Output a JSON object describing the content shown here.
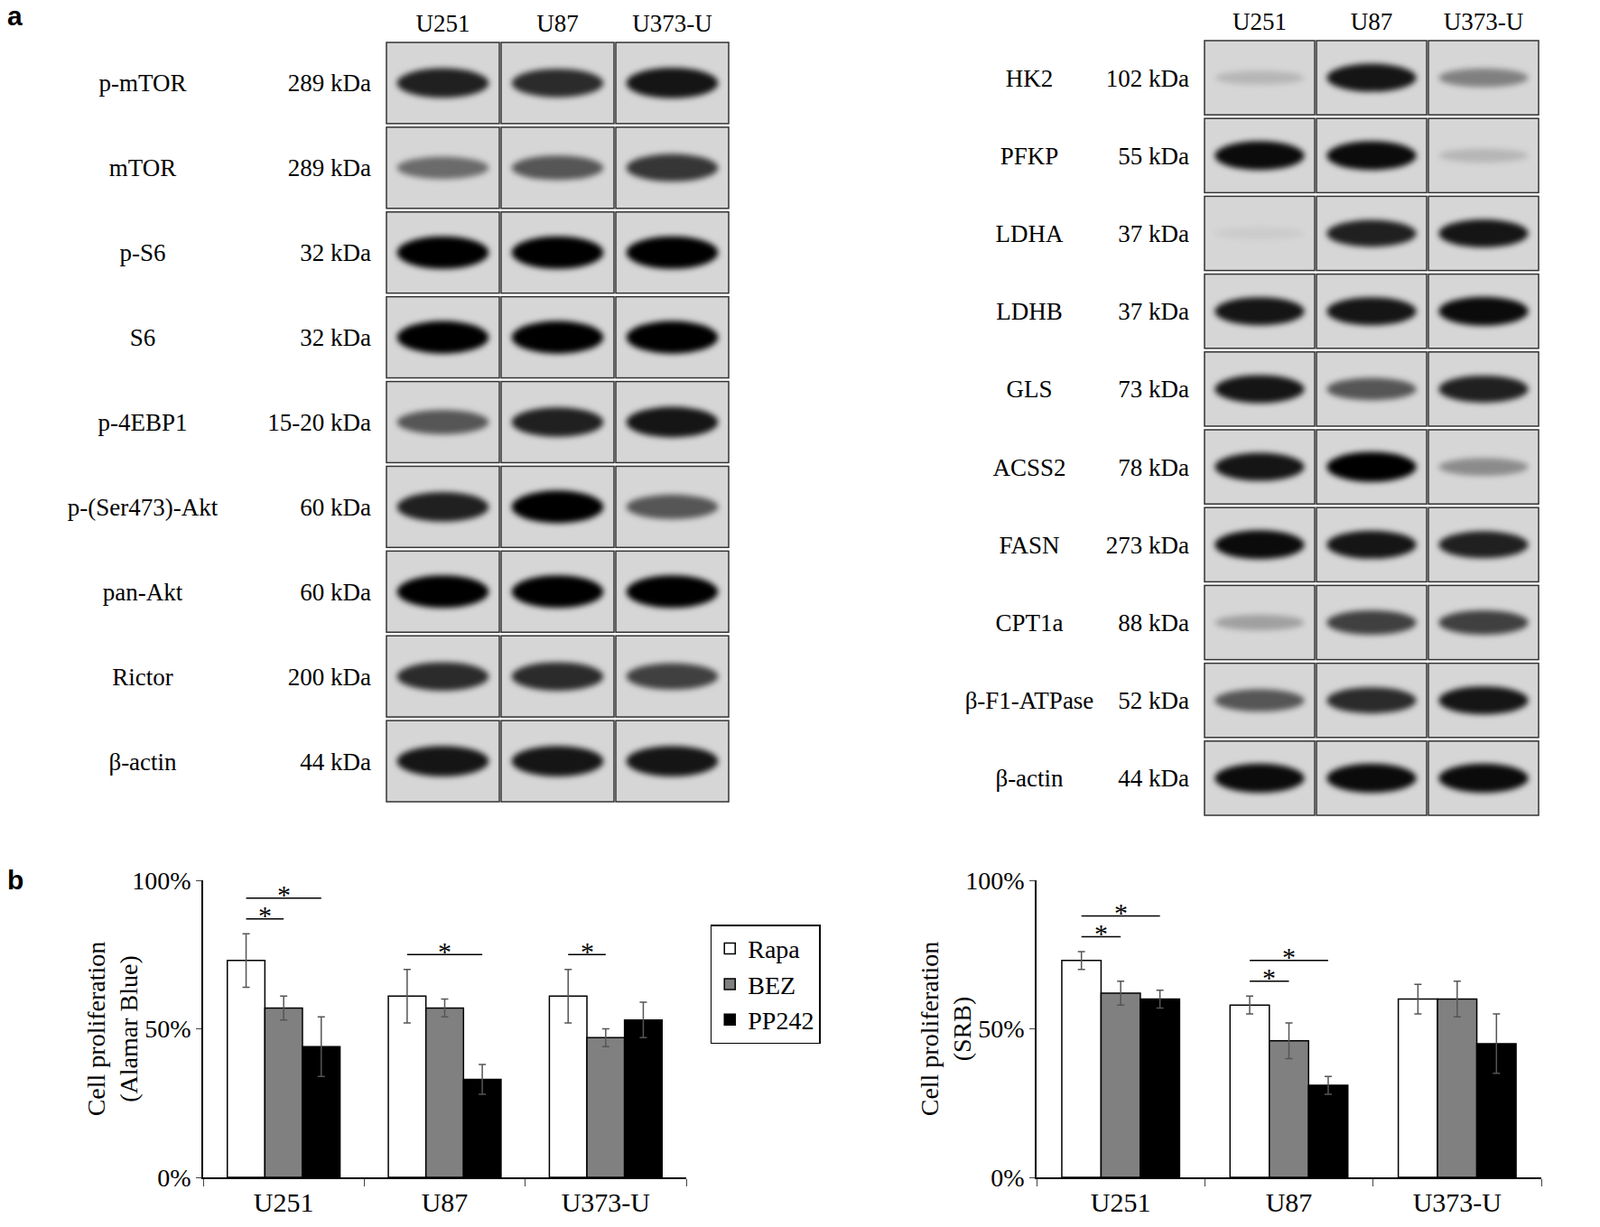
{
  "panel_labels": [
    "a",
    "b"
  ],
  "blots": [
    {
      "columns": [
        "U251",
        "U87",
        "U373-U"
      ],
      "rows": [
        {
          "protein": "p-mTOR",
          "size": "289 kDa",
          "intensity": [
            0.85,
            0.8,
            0.9
          ]
        },
        {
          "protein": "mTOR",
          "size": "289 kDa",
          "intensity": [
            0.5,
            0.6,
            0.75
          ]
        },
        {
          "protein": "p-S6",
          "size": "32 kDa",
          "intensity": [
            1,
            1,
            1
          ]
        },
        {
          "protein": "S6",
          "size": "32 kDa",
          "intensity": [
            1,
            1,
            1
          ]
        },
        {
          "protein": "p-4EBP1",
          "size": "15-20 kDa",
          "intensity": [
            0.6,
            0.85,
            0.9
          ]
        },
        {
          "protein": "p-(Ser473)-Akt",
          "size": "60 kDa",
          "intensity": [
            0.85,
            1,
            0.6
          ]
        },
        {
          "protein": "pan-Akt",
          "size": "60 kDa",
          "intensity": [
            1,
            1,
            1
          ]
        },
        {
          "protein": "Rictor",
          "size": "200 kDa",
          "intensity": [
            0.8,
            0.8,
            0.7
          ]
        },
        {
          "protein": "β-actin",
          "size": "44 kDa",
          "intensity": [
            0.9,
            0.9,
            0.9
          ]
        }
      ]
    },
    {
      "columns": [
        "U251",
        "U87",
        "U373-U"
      ],
      "rows": [
        {
          "protein": "HK2",
          "size": "102 kDa",
          "intensity": [
            0.15,
            0.9,
            0.4
          ]
        },
        {
          "protein": "PFKP",
          "size": "55 kDa",
          "intensity": [
            0.95,
            0.95,
            0.15
          ]
        },
        {
          "protein": "LDHA",
          "size": "37 kDa",
          "intensity": [
            0.05,
            0.85,
            0.9
          ]
        },
        {
          "protein": "LDHB",
          "size": "37 kDa",
          "intensity": [
            0.9,
            0.9,
            0.95
          ]
        },
        {
          "protein": "GLS",
          "size": "73 kDa",
          "intensity": [
            0.9,
            0.6,
            0.85
          ]
        },
        {
          "protein": "ACSS2",
          "size": "78 kDa",
          "intensity": [
            0.9,
            1,
            0.35
          ]
        },
        {
          "protein": "FASN",
          "size": "273 kDa",
          "intensity": [
            0.95,
            0.9,
            0.85
          ]
        },
        {
          "protein": "CPT1a",
          "size": "88 kDa",
          "intensity": [
            0.25,
            0.7,
            0.7
          ]
        },
        {
          "protein": "β-F1-ATPase",
          "size": "52 kDa",
          "intensity": [
            0.6,
            0.8,
            0.9
          ]
        },
        {
          "protein": "β-actin",
          "size": "44 kDa",
          "intensity": [
            0.95,
            0.95,
            0.95
          ]
        }
      ]
    }
  ],
  "chart_data": [
    {
      "type": "bar",
      "y_label": [
        "Cell proliferation",
        "(Alamar Blue)"
      ],
      "categories": [
        "U251",
        "U87",
        "U373-U"
      ],
      "series": [
        {
          "name": "Rapa",
          "color": "#ffffff",
          "values": [
            73,
            61,
            61
          ],
          "errors": [
            9,
            9,
            9
          ]
        },
        {
          "name": "BEZ",
          "color": "#808080",
          "values": [
            57,
            57,
            47
          ],
          "errors": [
            4,
            3,
            3
          ]
        },
        {
          "name": "PP242",
          "color": "#000000",
          "values": [
            44,
            33,
            53
          ],
          "errors": [
            10,
            5,
            6
          ]
        }
      ],
      "ylim": [
        0,
        100
      ],
      "yticks": [
        {
          "value": 0,
          "label": "0%"
        },
        {
          "value": 50,
          "label": "50%"
        },
        {
          "value": 100,
          "label": "100%"
        }
      ],
      "grid": false,
      "legend": "right",
      "significance": [
        {
          "category": "U251",
          "from": "Rapa",
          "to": "BEZ",
          "label": "*"
        },
        {
          "category": "U251",
          "from": "Rapa",
          "to": "PP242",
          "label": "*"
        },
        {
          "category": "U87",
          "from": "Rapa",
          "to": "PP242",
          "label": "*"
        },
        {
          "category": "U373-U",
          "from": "Rapa",
          "to": "BEZ",
          "label": "*"
        }
      ]
    },
    {
      "type": "bar",
      "y_label": [
        "Cell proliferation",
        "(SRB)"
      ],
      "categories": [
        "U251",
        "U87",
        "U373-U"
      ],
      "series": [
        {
          "name": "Rapa",
          "color": "#ffffff",
          "values": [
            73,
            58,
            60
          ],
          "errors": [
            3,
            3,
            5
          ]
        },
        {
          "name": "BEZ",
          "color": "#808080",
          "values": [
            62,
            46,
            60
          ],
          "errors": [
            4,
            6,
            6
          ]
        },
        {
          "name": "PP242",
          "color": "#000000",
          "values": [
            60,
            31,
            45
          ],
          "errors": [
            3,
            3,
            10
          ]
        }
      ],
      "ylim": [
        0,
        100
      ],
      "yticks": [
        {
          "value": 0,
          "label": "0%"
        },
        {
          "value": 50,
          "label": "50%"
        },
        {
          "value": 100,
          "label": "100%"
        }
      ],
      "grid": false,
      "significance": [
        {
          "category": "U251",
          "from": "Rapa",
          "to": "BEZ",
          "label": "*"
        },
        {
          "category": "U251",
          "from": "Rapa",
          "to": "PP242",
          "label": "*"
        },
        {
          "category": "U87",
          "from": "Rapa",
          "to": "BEZ",
          "label": "*"
        },
        {
          "category": "U87",
          "from": "Rapa",
          "to": "PP242",
          "label": "*"
        }
      ]
    }
  ]
}
